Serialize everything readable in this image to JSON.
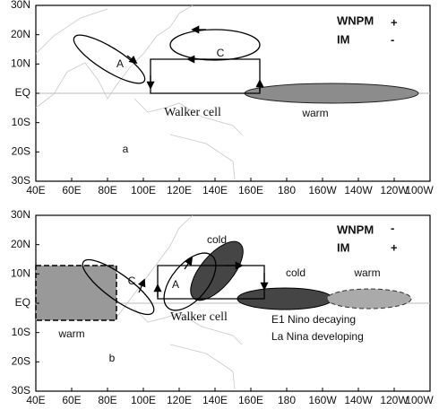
{
  "lat_labels": [
    "30N",
    "20N",
    "10N",
    "EQ",
    "10S",
    "20S",
    "30S"
  ],
  "lon_labels": [
    "40E",
    "60E",
    "80E",
    "100E",
    "120E",
    "140E",
    "160E",
    "180",
    "160W",
    "140W",
    "120W",
    "100W"
  ],
  "panel_a": {
    "label": "a",
    "legend": {
      "wnpm": "WNPM",
      "wnpm_sign": "+",
      "im": "IM",
      "im_sign": "-"
    },
    "cell_a": "A",
    "cell_c": "C",
    "walker": "Walker cell",
    "warm": "warm"
  },
  "panel_b": {
    "label": "b",
    "legend": {
      "wnpm": "WNPM",
      "wnpm_sign": "-",
      "im": "IM",
      "im_sign": "+"
    },
    "cell_c": "C",
    "cell_a": "A",
    "cold_west": "cold",
    "cold_east": "cold",
    "warm_east": "warm",
    "warm_west": "warm",
    "walker": "Walker cell",
    "note_1": "E1 Nino decaying",
    "note_2": "La Nina developing"
  }
}
